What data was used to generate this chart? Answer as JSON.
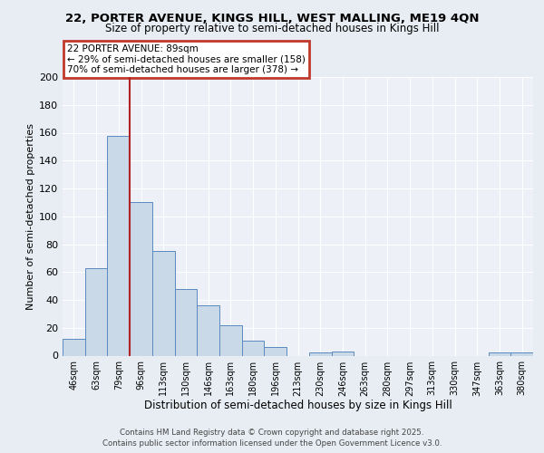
{
  "title_line1": "22, PORTER AVENUE, KINGS HILL, WEST MALLING, ME19 4QN",
  "title_line2": "Size of property relative to semi-detached houses in Kings Hill",
  "categories": [
    "46sqm",
    "63sqm",
    "79sqm",
    "96sqm",
    "113sqm",
    "130sqm",
    "146sqm",
    "163sqm",
    "180sqm",
    "196sqm",
    "213sqm",
    "230sqm",
    "246sqm",
    "263sqm",
    "280sqm",
    "297sqm",
    "313sqm",
    "330sqm",
    "347sqm",
    "363sqm",
    "380sqm"
  ],
  "values": [
    12,
    63,
    158,
    110,
    75,
    48,
    36,
    22,
    11,
    6,
    0,
    2,
    3,
    0,
    0,
    0,
    0,
    0,
    0,
    2,
    2
  ],
  "bar_color": "#c9d9e8",
  "bar_edge_color": "#5a8bbf",
  "property_label": "22 PORTER AVENUE: 89sqm",
  "annotation_line1": "← 29% of semi-detached houses are smaller (158)",
  "annotation_line2": "70% of semi-detached houses are larger (378) →",
  "vline_color": "#b22222",
  "vline_x_index": 2,
  "xlabel": "Distribution of semi-detached houses by size in Kings Hill",
  "ylabel": "Number of semi-detached properties",
  "ylim": [
    0,
    200
  ],
  "yticks": [
    0,
    20,
    40,
    60,
    80,
    100,
    120,
    140,
    160,
    180,
    200
  ],
  "background_color": "#e8edf3",
  "plot_bg_color": "#edf1f7",
  "footer_line1": "Contains HM Land Registry data © Crown copyright and database right 2025.",
  "footer_line2": "Contains public sector information licensed under the Open Government Licence v3.0.",
  "annotation_box_color": "#c0392b",
  "grid_color": "#ffffff",
  "title_fontsize": 9.5,
  "subtitle_fontsize": 8.5
}
